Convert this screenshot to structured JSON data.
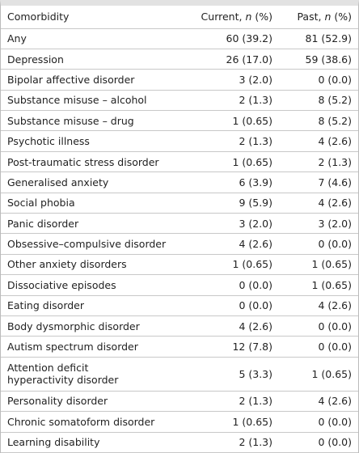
{
  "table": {
    "header": [
      "Comorbidity",
      [
        "Current, ",
        "n",
        " (%)"
      ],
      [
        "Past, ",
        "n",
        " (%)"
      ]
    ],
    "rows": [
      [
        "Any",
        "60 (39.2)",
        "81 (52.9)"
      ],
      [
        "Depression",
        "26 (17.0)",
        "59 (38.6)"
      ],
      [
        "Bipolar affective disorder",
        "3 (2.0)",
        "0 (0.0)"
      ],
      [
        "Substance misuse – alcohol",
        "2 (1.3)",
        "8 (5.2)"
      ],
      [
        "Substance misuse – drug",
        "1 (0.65)",
        "8 (5.2)"
      ],
      [
        "Psychotic illness",
        "2 (1.3)",
        "4 (2.6)"
      ],
      [
        "Post-traumatic stress disorder",
        "1 (0.65)",
        "2 (1.3)"
      ],
      [
        "Generalised anxiety",
        "6 (3.9)",
        "7 (4.6)"
      ],
      [
        "Social phobia",
        "9 (5.9)",
        "4 (2.6)"
      ],
      [
        "Panic disorder",
        "3 (2.0)",
        "3 (2.0)"
      ],
      [
        "Obsessive–compulsive disorder",
        "4 (2.6)",
        "0 (0.0)"
      ],
      [
        "Other anxiety disorders",
        "1 (0.65)",
        "1 (0.65)"
      ],
      [
        "Dissociative episodes",
        "0 (0.0)",
        "1 (0.65)"
      ],
      [
        "Eating disorder",
        "0 (0.0)",
        "4 (2.6)"
      ],
      [
        "Body dysmorphic disorder",
        "4 (2.6)",
        "0 (0.0)"
      ],
      [
        "Autism spectrum disorder",
        "12 (7.8)",
        "0 (0.0)"
      ],
      [
        "Attention deficit hyperactivity disorder",
        "5 (3.3)",
        "1 (0.65)"
      ],
      [
        "Personality disorder",
        "2 (1.3)",
        "4 (2.6)"
      ],
      [
        "Chronic somatoform disorder",
        "1 (0.65)",
        "0 (0.0)"
      ],
      [
        "Learning disability",
        "2 (1.3)",
        "0 (0.0)"
      ]
    ]
  }
}
